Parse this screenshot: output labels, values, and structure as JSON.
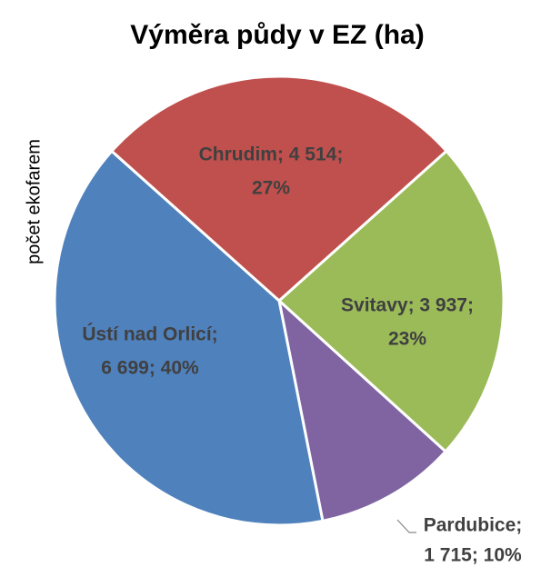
{
  "chart_data": {
    "type": "pie",
    "title": "Výměra půdy v EZ (ha)",
    "ylabel": "počet ekofarem",
    "values": [
      4514,
      3937,
      1715,
      6699
    ],
    "value_labels": [
      [
        "Chrudim; 4 514;",
        "27%"
      ],
      [
        "Svitavy; 3 937;",
        "23%"
      ],
      [
        "Pardubice;",
        "1 715; 10%"
      ],
      [
        "Ústí nad Orlicí;",
        "6 699; 40%"
      ]
    ],
    "colors": [
      "#c0504d",
      "#9bbb59",
      "#8064a2",
      "#4f81bd"
    ]
  }
}
